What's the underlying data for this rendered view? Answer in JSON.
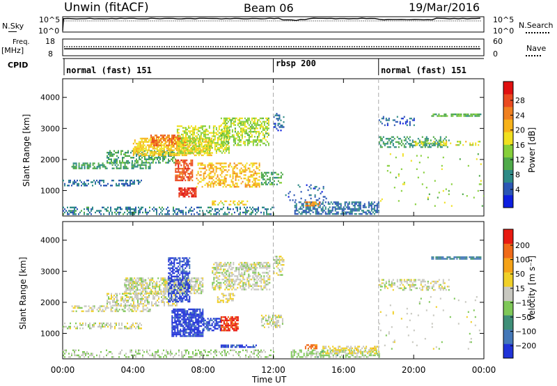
{
  "header": {
    "title": "Unwin (fitACF)",
    "beam": "Beam 06",
    "date": "19/Mar/2016"
  },
  "panel_labels": {
    "nsky": "N.Sky",
    "freq": "Freq.",
    "freq_unit": "[MHz]",
    "cpid": "CPID",
    "nsearch": "N.Search",
    "nave": "Nave"
  },
  "noise_axis": {
    "left_top": "10^5",
    "left_bottom": "10^0",
    "right_top": "10^5",
    "right_bottom": "10^0"
  },
  "freq_axis": {
    "left_top": "18",
    "left_bottom": "8",
    "right_top": "60",
    "right_bottom": "0"
  },
  "cpid_segments": [
    {
      "label": "normal (fast) 151",
      "start_hour": 0,
      "end_hour": 12
    },
    {
      "label": "rbsp 200",
      "start_hour": 12,
      "end_hour": 18
    },
    {
      "label": "normal (fast) 151",
      "start_hour": 18,
      "end_hour": 24
    }
  ],
  "x_axis": {
    "label": "Time UT",
    "ticks": [
      "00:00",
      "04:00",
      "08:00",
      "12:00",
      "16:00",
      "20:00",
      "00:00"
    ],
    "tick_hours": [
      0,
      4,
      8,
      12,
      16,
      20,
      24
    ],
    "range_hours": [
      0,
      24
    ]
  },
  "y_axis": {
    "label": "Slant Range [km]",
    "ticks": [
      "1000",
      "2000",
      "3000",
      "4000"
    ],
    "tick_values": [
      1000,
      2000,
      3000,
      4000
    ],
    "range_km": [
      180,
      4600
    ]
  },
  "power_colorbar": {
    "label": "Power [dB]",
    "ticks": [
      "4",
      "8",
      "12",
      "16",
      "20",
      "24",
      "28"
    ],
    "colors": [
      "#0d1ee0",
      "#2b56b4",
      "#2e8a86",
      "#4faa4a",
      "#86cf3a",
      "#f0e020",
      "#f7b21a",
      "#f08020",
      "#ea4a20",
      "#e01010"
    ]
  },
  "velocity_colorbar": {
    "label": "Velocity [m s⁻¹]",
    "ticks": [
      "200",
      "100",
      "50",
      "15",
      "−15",
      "−50",
      "−100",
      "−200"
    ],
    "colors": [
      "#2033d8",
      "#4478b8",
      "#3f8f78",
      "#7fc858",
      "#c8c8c0",
      "#f0d028",
      "#f5a218",
      "#f06a18",
      "#e81a10"
    ]
  },
  "chart_data": [
    {
      "type": "heatmap",
      "title": "Power",
      "xlabel": "Time UT",
      "ylabel": "Slant Range [km]",
      "xlim_hours": [
        0,
        24
      ],
      "ylim_km": [
        180,
        4600
      ],
      "colorbar_label": "Power [dB]",
      "colorbar_range": [
        0,
        30
      ],
      "regions": [
        {
          "t": [
            0,
            4.5
          ],
          "r": [
            1150,
            1350
          ],
          "v": 6,
          "d": 0.45
        },
        {
          "t": [
            0.5,
            5
          ],
          "r": [
            1700,
            1900
          ],
          "v": 9,
          "d": 0.5
        },
        {
          "t": [
            2.5,
            6.5
          ],
          "r": [
            1900,
            2300
          ],
          "v": 10,
          "d": 0.5
        },
        {
          "t": [
            4,
            8.5
          ],
          "r": [
            2150,
            2700
          ],
          "v": 18,
          "d": 0.7
        },
        {
          "t": [
            5,
            7
          ],
          "r": [
            2450,
            2800
          ],
          "v": 23,
          "d": 0.7
        },
        {
          "t": [
            6.5,
            9.5
          ],
          "r": [
            2200,
            3100
          ],
          "v": 15,
          "d": 0.55
        },
        {
          "t": [
            9,
            11.7
          ],
          "r": [
            2450,
            3350
          ],
          "v": 14,
          "d": 0.55
        },
        {
          "t": [
            6.4,
            7.4
          ],
          "r": [
            1300,
            2000
          ],
          "v": 25,
          "d": 0.7
        },
        {
          "t": [
            6.6,
            7.6
          ],
          "r": [
            800,
            1100
          ],
          "v": 27,
          "d": 0.75
        },
        {
          "t": [
            7.6,
            11.2
          ],
          "r": [
            1100,
            1900
          ],
          "v": 19,
          "d": 0.45
        },
        {
          "t": [
            8.5,
            10.5
          ],
          "r": [
            540,
            680
          ],
          "v": 17,
          "d": 0.5
        },
        {
          "t": [
            0,
            12
          ],
          "r": [
            220,
            480
          ],
          "v": 7,
          "d": 0.35
        },
        {
          "t": [
            11.3,
            12.5
          ],
          "r": [
            1200,
            1600
          ],
          "v": 10,
          "d": 0.5
        },
        {
          "t": [
            12,
            12.6
          ],
          "r": [
            2900,
            3500
          ],
          "v": 5,
          "d": 0.35
        },
        {
          "t": [
            12.6,
            15
          ],
          "r": [
            700,
            1200
          ],
          "v": 5,
          "d": 0.12
        },
        {
          "t": [
            13.2,
            18
          ],
          "r": [
            220,
            650
          ],
          "v": 6,
          "d": 0.55
        },
        {
          "t": [
            13.8,
            14.6
          ],
          "r": [
            520,
            650
          ],
          "v": 22,
          "d": 0.7
        },
        {
          "t": [
            18,
            22
          ],
          "r": [
            2400,
            2750
          ],
          "v": 9,
          "d": 0.45
        },
        {
          "t": [
            18,
            20
          ],
          "r": [
            3100,
            3400
          ],
          "v": 5,
          "d": 0.25
        },
        {
          "t": [
            21,
            23.8
          ],
          "r": [
            3380,
            3480
          ],
          "v": 11,
          "d": 0.7
        },
        {
          "t": [
            20,
            23.8
          ],
          "r": [
            2480,
            2600
          ],
          "v": 16,
          "d": 0.35
        },
        {
          "t": [
            18,
            24
          ],
          "r": [
            500,
            2200
          ],
          "v": 14,
          "d": 0.02
        }
      ]
    },
    {
      "type": "heatmap",
      "title": "Velocity",
      "xlabel": "Time UT",
      "ylabel": "Slant Range [km]",
      "xlim_hours": [
        0,
        24
      ],
      "ylim_km": [
        180,
        4600
      ],
      "colorbar_label": "Velocity [m s⁻¹]",
      "colorbar_range": [
        -250,
        250
      ],
      "regions": [
        {
          "t": [
            0,
            4.5
          ],
          "r": [
            1150,
            1350
          ],
          "v": 0,
          "d": 0.45
        },
        {
          "t": [
            0.5,
            5
          ],
          "r": [
            1700,
            1900
          ],
          "v": 0,
          "d": 0.5
        },
        {
          "t": [
            2.5,
            6.5
          ],
          "r": [
            1900,
            2300
          ],
          "v": 0,
          "d": 0.55
        },
        {
          "t": [
            3.5,
            8
          ],
          "r": [
            2300,
            2800
          ],
          "v": 0,
          "d": 0.7
        },
        {
          "t": [
            6,
            7.2
          ],
          "r": [
            2000,
            3450
          ],
          "v": -210,
          "d": 0.6
        },
        {
          "t": [
            6.2,
            8
          ],
          "r": [
            900,
            1800
          ],
          "v": -220,
          "d": 0.8
        },
        {
          "t": [
            8,
            9
          ],
          "r": [
            1100,
            1500
          ],
          "v": -200,
          "d": 0.65
        },
        {
          "t": [
            9,
            10
          ],
          "r": [
            1100,
            1550
          ],
          "v": 210,
          "d": 0.75
        },
        {
          "t": [
            9,
            11
          ],
          "r": [
            540,
            640
          ],
          "v": -210,
          "d": 0.75
        },
        {
          "t": [
            8.5,
            11.8
          ],
          "r": [
            2400,
            3300
          ],
          "v": 0,
          "d": 0.55
        },
        {
          "t": [
            8.8,
            9.8
          ],
          "r": [
            2000,
            2300
          ],
          "v": 40,
          "d": 0.45
        },
        {
          "t": [
            0,
            12
          ],
          "r": [
            220,
            480
          ],
          "v": -30,
          "d": 0.35
        },
        {
          "t": [
            11.3,
            12.5
          ],
          "r": [
            1200,
            1600
          ],
          "v": 0,
          "d": 0.5
        },
        {
          "t": [
            12,
            12.6
          ],
          "r": [
            2900,
            3500
          ],
          "v": 0,
          "d": 0.35
        },
        {
          "t": [
            13,
            18
          ],
          "r": [
            220,
            480
          ],
          "v": -40,
          "d": 0.55
        },
        {
          "t": [
            14.8,
            18
          ],
          "r": [
            350,
            600
          ],
          "v": 40,
          "d": 0.55
        },
        {
          "t": [
            13.8,
            14.5
          ],
          "r": [
            520,
            650
          ],
          "v": 150,
          "d": 0.7
        },
        {
          "t": [
            18,
            22
          ],
          "r": [
            2400,
            2750
          ],
          "v": 0,
          "d": 0.45
        },
        {
          "t": [
            21,
            23.8
          ],
          "r": [
            3380,
            3480
          ],
          "v": -150,
          "d": 0.7
        },
        {
          "t": [
            18,
            24
          ],
          "r": [
            500,
            2200
          ],
          "v": 0,
          "d": 0.02
        }
      ]
    }
  ]
}
